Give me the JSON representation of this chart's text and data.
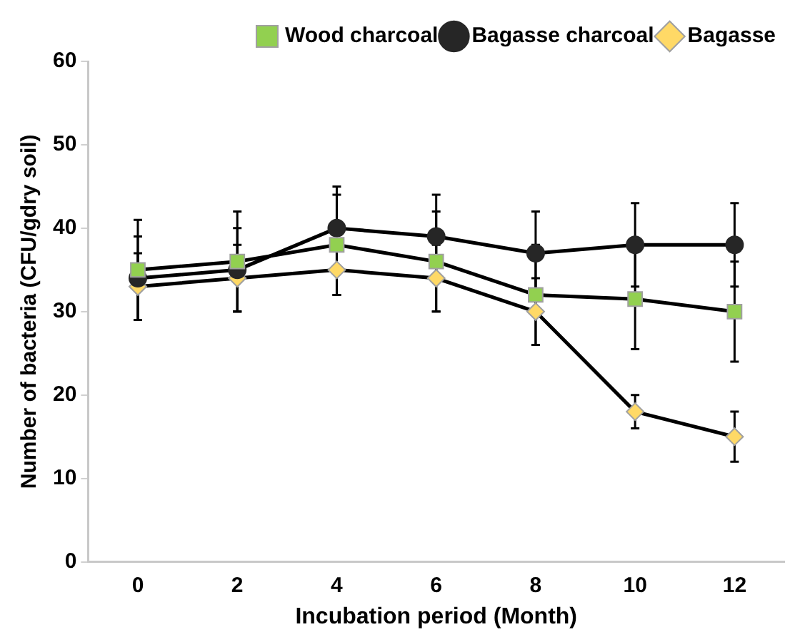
{
  "chart_data": {
    "type": "line",
    "xlabel": "Incubation period (Month)",
    "ylabel": "Number of bacteria (CFU/gdry soil)",
    "x": [
      0,
      2,
      4,
      6,
      8,
      10,
      12
    ],
    "series": [
      {
        "name": "Bagasse",
        "color": "#ffd966",
        "marker": "diamond",
        "values": [
          33,
          34,
          35,
          34,
          30,
          18,
          15
        ],
        "errors": [
          4,
          4,
          3,
          4,
          4,
          2,
          3
        ]
      },
      {
        "name": "Bagasse charcoal",
        "color": "#262626",
        "marker": "circle",
        "values": [
          34,
          35,
          40,
          39,
          37,
          38,
          38
        ],
        "errors": [
          5,
          5,
          5,
          5,
          5,
          5,
          5
        ]
      },
      {
        "name": "Wood charcoal",
        "color": "#92d050",
        "marker": "square",
        "values": [
          35,
          36,
          38,
          36,
          32,
          31.5,
          30
        ],
        "errors": [
          6,
          6,
          6,
          6,
          6,
          6,
          6
        ]
      }
    ],
    "xlim": [
      -1,
      13
    ],
    "xticks": [
      0,
      2,
      4,
      6,
      8,
      10,
      12
    ],
    "ylim": [
      0,
      60
    ],
    "yticks": [
      0,
      10,
      20,
      30,
      40,
      50,
      60
    ],
    "grid": false,
    "legend": "top right",
    "line_style": "solid"
  }
}
